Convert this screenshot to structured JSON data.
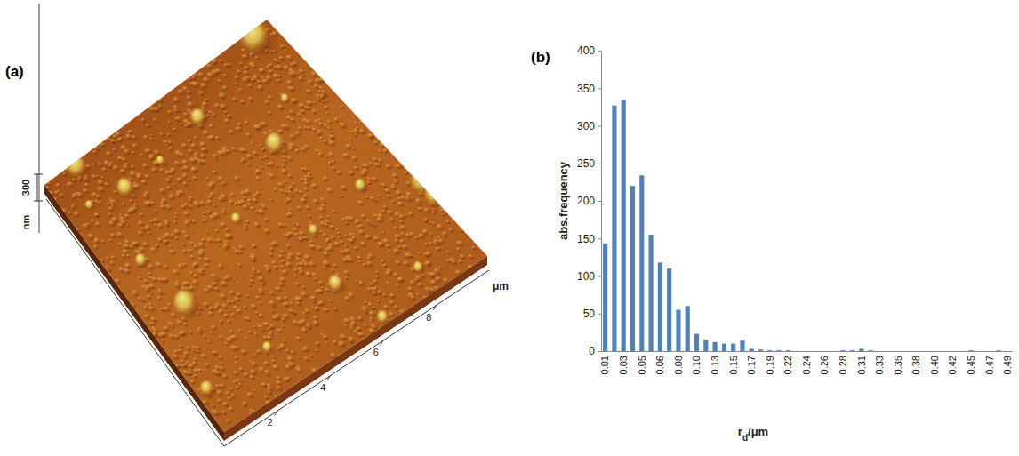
{
  "chart_data": [
    {
      "type": "surface",
      "panel": "(a)",
      "x_label": "μm",
      "xlim": [
        0,
        10
      ],
      "xticks": [
        2,
        4,
        6,
        8
      ],
      "zscale": 300,
      "z_label": "nm"
    },
    {
      "type": "bar",
      "panel": "(b)",
      "x_label": [
        "r",
        "d",
        "/μm"
      ],
      "y_label": "abs.frequency",
      "categories": [
        "0.01",
        null,
        "0.03",
        null,
        "0.05",
        null,
        "0.06",
        null,
        "0.08",
        null,
        "0.10",
        null,
        "0.13",
        null,
        "0.15",
        null,
        "0.17",
        null,
        "0.19",
        null,
        "0.22",
        null,
        "0.24",
        null,
        "0.26",
        null,
        "0.28",
        null,
        "0.31",
        null,
        "0.33",
        null,
        "0.35",
        null,
        "0.38",
        null,
        "0.40",
        null,
        "0.42",
        null,
        "0.45",
        null,
        "0.47",
        null,
        "0.49"
      ],
      "values": [
        143,
        327,
        335,
        220,
        234,
        155,
        118,
        110,
        55,
        60,
        23,
        15,
        12,
        10,
        10,
        14,
        3,
        2,
        1,
        1,
        1,
        0,
        0,
        0,
        0,
        0,
        1,
        1,
        3,
        1,
        0,
        0,
        0,
        0,
        0,
        0,
        0,
        0,
        0,
        0,
        1,
        0,
        0,
        1,
        0
      ],
      "color": "#4f81bd",
      "ylim": [
        0,
        400
      ],
      "yticks": [
        0,
        50,
        100,
        150,
        200,
        250,
        300,
        350,
        400
      ],
      "grid": false
    }
  ]
}
